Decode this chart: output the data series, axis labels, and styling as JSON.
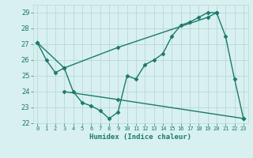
{
  "line1_x": [
    0,
    1,
    2,
    3,
    4,
    5,
    6,
    7,
    8,
    9,
    10,
    11,
    12,
    13,
    14,
    15,
    16,
    17,
    18,
    19,
    20,
    21,
    22,
    23
  ],
  "line1_y": [
    27.1,
    26.0,
    25.2,
    25.5,
    24.0,
    23.3,
    23.1,
    22.8,
    22.3,
    22.7,
    25.0,
    24.8,
    25.7,
    26.0,
    26.4,
    27.5,
    28.2,
    28.4,
    28.7,
    29.0,
    29.0,
    27.5,
    24.8,
    22.3
  ],
  "line2_x": [
    0,
    3,
    9,
    19,
    20
  ],
  "line2_y": [
    27.1,
    25.5,
    26.8,
    28.7,
    29.0
  ],
  "line3_x": [
    3,
    9,
    23
  ],
  "line3_y": [
    24.0,
    23.5,
    22.3
  ],
  "color": "#1a7a6a",
  "bg_color": "#d8f0f0",
  "grid_color": "#b8d8d8",
  "xlabel": "Humidex (Indice chaleur)",
  "ylim": [
    22,
    29.5
  ],
  "xlim": [
    -0.5,
    23.5
  ],
  "yticks": [
    22,
    23,
    24,
    25,
    26,
    27,
    28,
    29
  ],
  "xtick_labels": [
    "0",
    "1",
    "2",
    "3",
    "4",
    "5",
    "6",
    "7",
    "8",
    "9",
    "10",
    "11",
    "12",
    "13",
    "14",
    "15",
    "16",
    "17",
    "18",
    "19",
    "20",
    "21",
    "22",
    "23"
  ],
  "xticks": [
    0,
    1,
    2,
    3,
    4,
    5,
    6,
    7,
    8,
    9,
    10,
    11,
    12,
    13,
    14,
    15,
    16,
    17,
    18,
    19,
    20,
    21,
    22,
    23
  ],
  "marker": "D",
  "marker_size": 2.5,
  "linewidth": 1.0
}
